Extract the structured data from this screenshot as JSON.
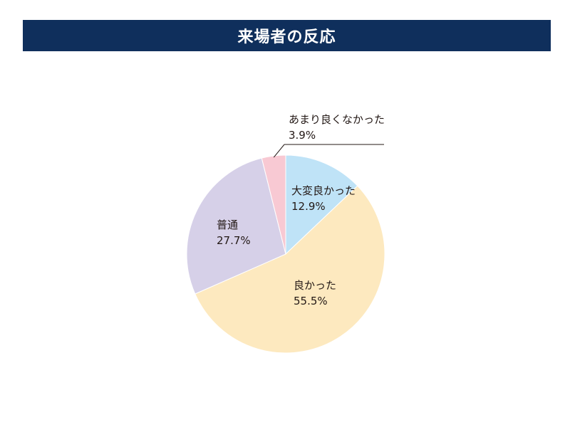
{
  "title": "来場者の反応",
  "colors": {
    "title_bg": "#0f2f5c",
    "title_text": "#ffffff"
  },
  "chart_data": {
    "type": "pie",
    "title": "来場者の反応",
    "start_angle_deg": 0,
    "direction": "clockwise",
    "slices": [
      {
        "label": "大変良かった",
        "value": 12.9,
        "value_label": "12.9%",
        "color": "#bfe3f7"
      },
      {
        "label": "良かった",
        "value": 55.5,
        "value_label": "55.5%",
        "color": "#fde9bf"
      },
      {
        "label": "普通",
        "value": 27.7,
        "value_label": "27.7%",
        "color": "#d6d0e8"
      },
      {
        "label": "あまり良くなかった",
        "value": 3.9,
        "value_label": "3.9%",
        "color": "#f8c9d3"
      }
    ]
  }
}
